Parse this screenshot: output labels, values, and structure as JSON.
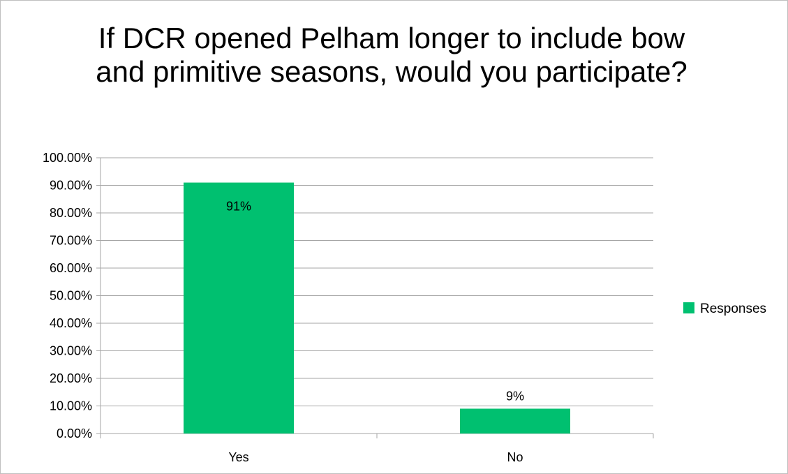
{
  "chart_data": {
    "type": "bar",
    "title": "If DCR opened Pelham longer to include bow and primitive seasons, would you participate?",
    "categories": [
      "Yes",
      "No"
    ],
    "series": [
      {
        "name": "Responses",
        "values": [
          91,
          9
        ],
        "data_labels": [
          "91%",
          "9%"
        ],
        "color": "#00c070"
      }
    ],
    "ylim": [
      0,
      100
    ],
    "yticks": [
      "0.00%",
      "10.00%",
      "20.00%",
      "30.00%",
      "40.00%",
      "50.00%",
      "60.00%",
      "70.00%",
      "80.00%",
      "90.00%",
      "100.00%"
    ],
    "grid": true,
    "legend_position": "right",
    "xlabel": "",
    "ylabel": ""
  }
}
